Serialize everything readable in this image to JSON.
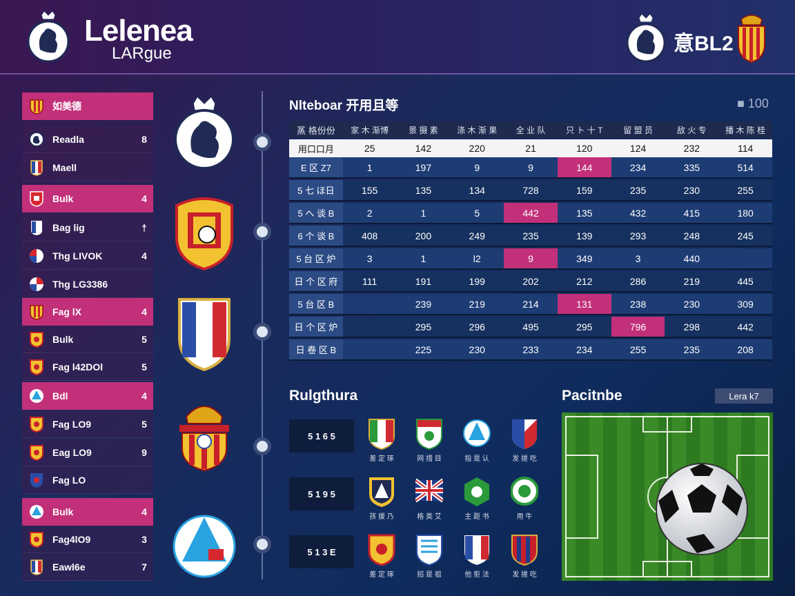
{
  "header": {
    "title": "Lelenea",
    "subtitle": "LARgue",
    "right_text": "意BL2"
  },
  "sidebar": {
    "groups": [
      {
        "label": "如美德",
        "count": "",
        "items": [
          {
            "label": "Readla",
            "count": "8"
          },
          {
            "label": "Maell",
            "count": ""
          }
        ]
      },
      {
        "label": "Bulk",
        "count": "4",
        "items": [
          {
            "label": "Bag lig",
            "count": "†"
          },
          {
            "label": "Thg LIVOK",
            "count": "4"
          },
          {
            "label": "Thg LG3386",
            "count": ""
          }
        ]
      },
      {
        "label": "Fag lX",
        "count": "4",
        "items": [
          {
            "label": "Bulk",
            "count": "5"
          },
          {
            "label": "Fag l42DOl",
            "count": "5"
          }
        ]
      },
      {
        "label": "Bdl",
        "count": "4",
        "items": [
          {
            "label": "Fag LO9",
            "count": "5"
          },
          {
            "label": "Eag LO9",
            "count": "9"
          },
          {
            "label": "Fag LO",
            "count": ""
          }
        ]
      },
      {
        "label": "Bulk",
        "count": "4",
        "items": [
          {
            "label": "Fag4lO9",
            "count": "3"
          },
          {
            "label": "Eawl6e",
            "count": "7"
          }
        ]
      }
    ]
  },
  "table": {
    "title": "Nlteboar 开用且等",
    "total": "■ 100",
    "headers": [
      "蒸 格份份",
      "家 木 渐博",
      "景 摄 素",
      "涤 木 渐 果",
      "全 业 队",
      "只 ト 十 T",
      "留 盟 员",
      "敌 火 专",
      "播 木 陈 桂"
    ],
    "rows": [
      [
        "用口口月",
        "25",
        "142",
        "220",
        "21",
        "120",
        "124",
        "232",
        "114"
      ],
      [
        "E 区 Z7",
        "1",
        "197",
        "9",
        "9",
        "144",
        "234",
        "335",
        "514"
      ],
      [
        "5 七 ほ日",
        "155",
        "135",
        "134",
        "728",
        "159",
        "235",
        "230",
        "255"
      ],
      [
        "5 へ 谈 B",
        "2",
        "1",
        "5",
        "442",
        "135",
        "432",
        "415",
        "180"
      ],
      [
        "6 个 谈 B",
        "408",
        "200",
        "249",
        "235",
        "139",
        "293",
        "248",
        "245"
      ],
      [
        "5 台 区 炉",
        "3",
        "1",
        "l2",
        "9",
        "349",
        "3",
        "440",
        ""
      ],
      [
        "日 个 区 府",
        "111",
        "191",
        "199",
        "202",
        "212",
        "286",
        "219",
        "445"
      ],
      [
        "5 台 区 B",
        "",
        "239",
        "219",
        "214",
        "131",
        "238",
        "230",
        "309"
      ],
      [
        "日 个 区 炉",
        "",
        "295",
        "296",
        "495",
        "295",
        "796",
        "298",
        "442"
      ],
      [
        "日 卷 区 B",
        "",
        "225",
        "230",
        "233",
        "234",
        "255",
        "235",
        "208"
      ]
    ],
    "highlights": [
      [
        1,
        5
      ],
      [
        3,
        4
      ],
      [
        5,
        4
      ],
      [
        7,
        5
      ],
      [
        8,
        6
      ]
    ]
  },
  "results": {
    "title": "Rulgthura",
    "rows": [
      {
        "score": "5 1 6 5",
        "teams": [
          "差 定 琢",
          "网 措 目",
          "指 是 认",
          "发 搓 吃"
        ]
      },
      {
        "score": "5 1 9 5",
        "teams": [
          "孩 援 乃",
          "格 类 艾",
          "主 距 书",
          "用 牛"
        ]
      },
      {
        "score": "5 1 3 E",
        "teams": [
          "差 定 琢",
          "招 是 祖",
          "他 拒 法",
          "发 搓 吃"
        ]
      }
    ]
  },
  "pitch": {
    "title": "Pacitnbe",
    "badge": "Lera k7"
  },
  "colors": {
    "accent": "#c2307a",
    "header_bg": "#2a2160",
    "table_row": "#1d3c74"
  }
}
